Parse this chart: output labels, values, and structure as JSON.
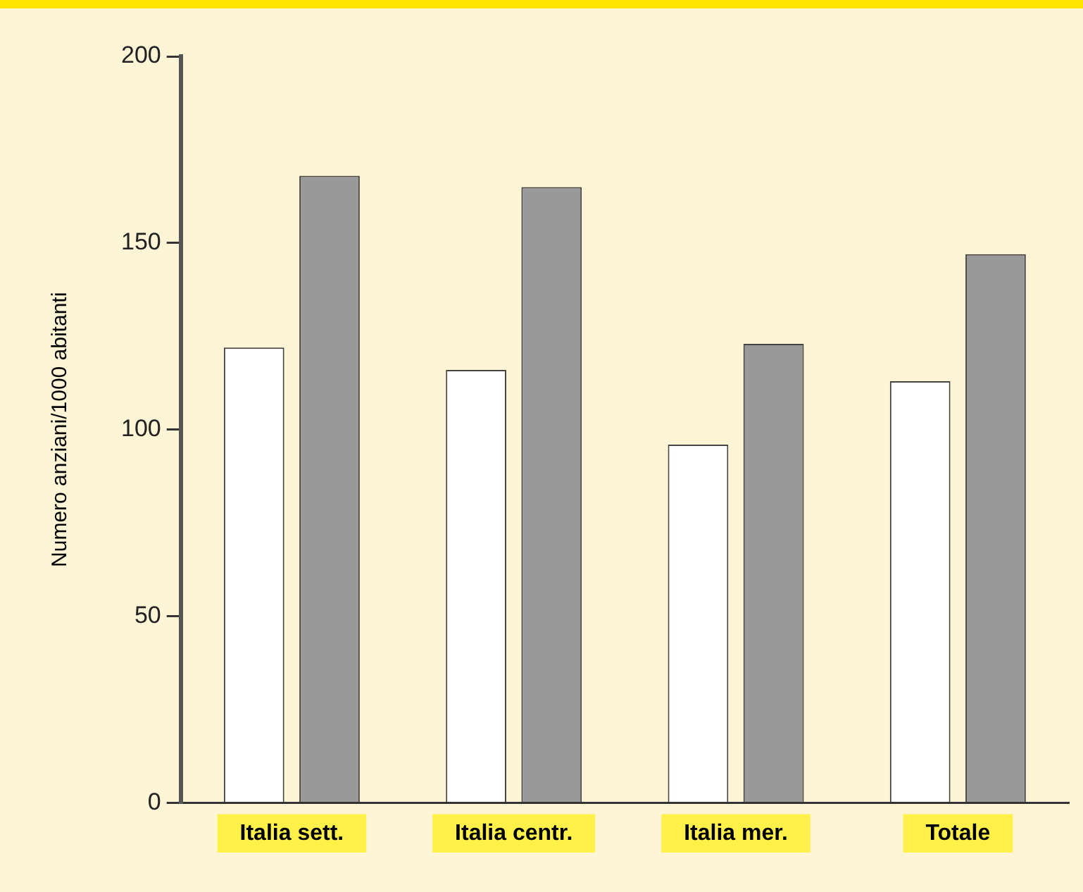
{
  "chart_data": {
    "type": "bar",
    "ylabel": "Numero anziani/1000 abitanti",
    "categories": [
      "Italia sett.",
      "Italia centr.",
      "Italia mer.",
      "Totale"
    ],
    "series": [
      {
        "color": "#ffffff",
        "values": [
          122,
          116,
          96,
          113
        ]
      },
      {
        "color": "#999999",
        "values": [
          168,
          165,
          123,
          147
        ]
      }
    ],
    "ylim": [
      0,
      200
    ],
    "yticks": [
      0,
      50,
      100,
      150,
      200
    ],
    "grid": false,
    "legend": false
  }
}
